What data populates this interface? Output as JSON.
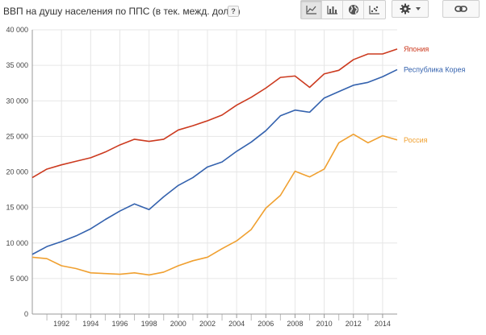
{
  "header": {
    "title": "ВВП на душу населения по ППС (в тек. межд. долл.)",
    "help_label": "?"
  },
  "toolbar": {
    "buttons": [
      {
        "icon": "line-chart-icon",
        "active": true
      },
      {
        "icon": "bar-chart-icon",
        "active": false
      },
      {
        "icon": "globe-icon",
        "active": false
      },
      {
        "icon": "scatter-chart-icon",
        "active": false
      }
    ],
    "settings_icon": "gear-icon",
    "link_icon": "link-icon"
  },
  "chart_data": {
    "type": "line",
    "title": "ВВП на душу населения по ППС (в тек. межд. долл.)",
    "x": [
      1990,
      1991,
      1992,
      1993,
      1994,
      1995,
      1996,
      1997,
      1998,
      1999,
      2000,
      2001,
      2002,
      2003,
      2004,
      2005,
      2006,
      2007,
      2008,
      2009,
      2010,
      2011,
      2012,
      2013,
      2014,
      2015
    ],
    "xlim": [
      1990,
      2015
    ],
    "ylim": [
      0,
      40000
    ],
    "x_ticks": [
      1992,
      1994,
      1996,
      1998,
      2000,
      2002,
      2004,
      2006,
      2008,
      2010,
      2012,
      2014
    ],
    "x_tick_labels": [
      "1992",
      "1994",
      "1996",
      "1998",
      "2000",
      "2002",
      "2004",
      "2006",
      "2008",
      "2010",
      "2012",
      "2014"
    ],
    "y_ticks": [
      0,
      5000,
      10000,
      15000,
      20000,
      25000,
      30000,
      35000,
      40000
    ],
    "y_tick_labels": [
      "0",
      "5 000",
      "10 000",
      "15 000",
      "20 000",
      "25 000",
      "30 000",
      "35 000",
      "40 000"
    ],
    "grid": true,
    "legend": "inline-right",
    "series": [
      {
        "name": "Япония",
        "color": "#cc3a1f",
        "values": [
          19200,
          20400,
          21000,
          21500,
          22000,
          22800,
          23800,
          24600,
          24300,
          24600,
          25900,
          26500,
          27200,
          28000,
          29400,
          30500,
          31800,
          33300,
          33500,
          31900,
          33800,
          34300,
          35800,
          36600,
          36600,
          37300
        ]
      },
      {
        "name": "Республика Корея",
        "color": "#3462ae",
        "values": [
          8400,
          9500,
          10200,
          11000,
          12000,
          13300,
          14500,
          15500,
          14700,
          16500,
          18100,
          19200,
          20700,
          21400,
          22900,
          24200,
          25800,
          27900,
          28700,
          28400,
          30400,
          31300,
          32200,
          32600,
          33400,
          34400
        ]
      },
      {
        "name": "Россия",
        "color": "#f0a030",
        "values": [
          8000,
          7800,
          6800,
          6400,
          5800,
          5700,
          5600,
          5800,
          5500,
          5900,
          6800,
          7500,
          8000,
          9200,
          10300,
          11900,
          14900,
          16700,
          20100,
          19300,
          20400,
          24100,
          25300,
          24100,
          25100,
          24500
        ]
      }
    ]
  }
}
